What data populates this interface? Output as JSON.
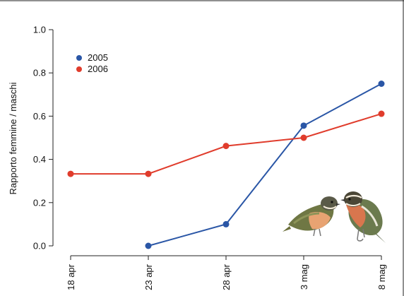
{
  "chart_data": {
    "type": "line",
    "categories": [
      "18 apr",
      "23 apr",
      "28 apr",
      "3 mag",
      "8 mag"
    ],
    "series": [
      {
        "name": "2005",
        "color": "#2a56a6",
        "values": [
          null,
          0.0,
          0.1,
          0.556,
          0.75
        ]
      },
      {
        "name": "2006",
        "color": "#e03c2c",
        "values": [
          0.333,
          0.333,
          0.462,
          0.5,
          0.611
        ]
      }
    ],
    "ylabel": "Rapporto femmine / maschi",
    "xlabel": "",
    "ylim": [
      0.0,
      1.0
    ],
    "yticks": [
      "0.0",
      "0.2",
      "0.4",
      "0.6",
      "0.8",
      "1.0"
    ],
    "grid": false,
    "legend_position": "top-left",
    "illustration": "two-birds-illustration"
  }
}
